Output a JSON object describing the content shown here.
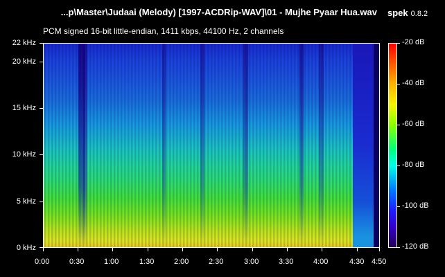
{
  "window": {
    "file_title": "...p\\Master\\Judaai (Melody) [1997-ACDRip-WAV]\\01 - Mujhe Pyaar Hua.wav",
    "app_name": "spek",
    "app_version": "0.8.2",
    "audio_info": "PCM signed 16-bit little-endian, 1411 kbps, 44100 Hz, 2 channels"
  },
  "spectrogram": {
    "y_axis_labels": [
      "22 kHz",
      "20 kHz",
      "15 kHz",
      "10 kHz",
      "5 kHz",
      "0 kHz"
    ],
    "x_axis_labels": [
      "0:00",
      "0:30",
      "1:00",
      "1:30",
      "2:00",
      "2:30",
      "3:00",
      "3:30",
      "4:00",
      "4:30",
      "4:50"
    ],
    "colorbar_labels": [
      "-20 dB",
      "-40 dB",
      "-60 dB",
      "-80 dB",
      "-100 dB",
      "-120 dB"
    ]
  }
}
